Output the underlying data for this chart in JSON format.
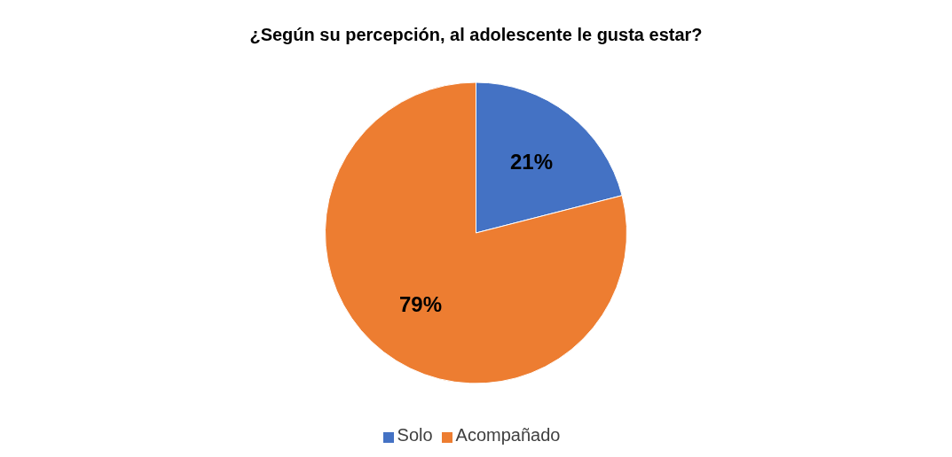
{
  "chart_data": {
    "type": "pie",
    "title": "¿Según su percepción, al adolescente le gusta estar?",
    "categories": [
      "Solo",
      "Acompañado"
    ],
    "values": [
      21,
      79
    ],
    "colors": [
      "#4472c4",
      "#ed7d31"
    ],
    "value_labels": [
      "21%",
      "79%"
    ],
    "legend": "bottom"
  }
}
